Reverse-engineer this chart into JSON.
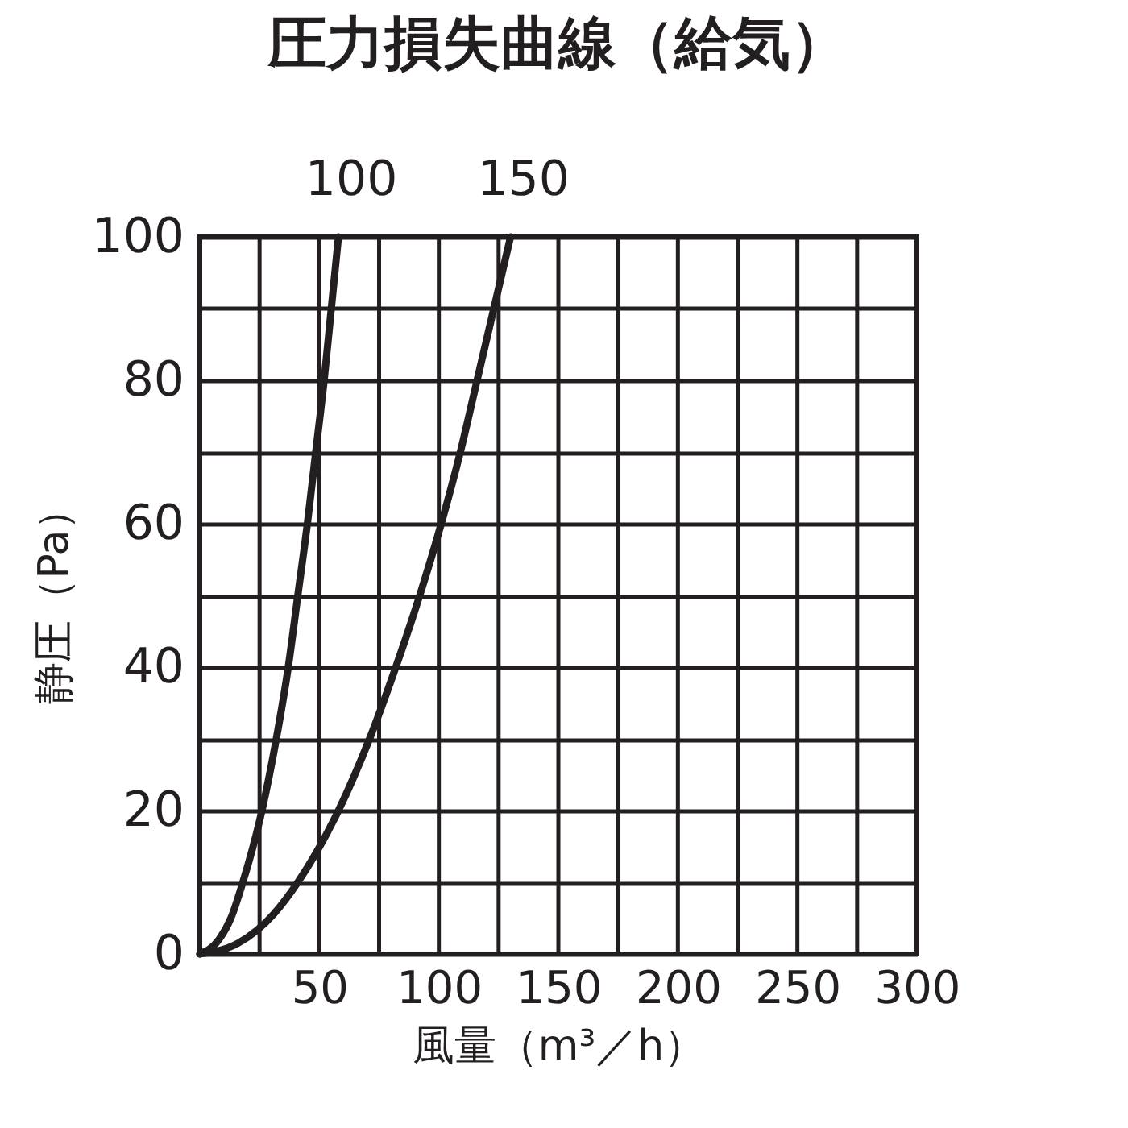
{
  "chart_data": {
    "type": "line",
    "title": "圧力損失曲線（給気）",
    "xlabel": "風量（m³／h）",
    "ylabel": "静圧（Pa）",
    "series": [
      {
        "name": "100",
        "color": "#231f20",
        "x": [
          0,
          8,
          13,
          18,
          26,
          32,
          37,
          41,
          45,
          48.5,
          52,
          55,
          58
        ],
        "values": [
          0,
          2,
          5,
          10,
          20,
          30,
          40,
          50,
          60,
          70,
          80,
          90,
          100
        ]
      },
      {
        "name": "150",
        "color": "#231f20",
        "x": [
          0,
          16,
          31,
          41,
          58,
          71,
          82,
          92,
          101,
          109,
          116,
          123,
          130
        ],
        "values": [
          0,
          1.5,
          5.6,
          10,
          20,
          30,
          40,
          50,
          60,
          70,
          80,
          90,
          100
        ]
      }
    ],
    "xlim": [
      0,
      300
    ],
    "ylim": [
      0,
      100
    ],
    "xticks": [
      {
        "value": 0,
        "label": null
      },
      {
        "value": 25,
        "label": null
      },
      50,
      {
        "value": 75,
        "label": null
      },
      100,
      {
        "value": 125,
        "label": null
      },
      150,
      {
        "value": 175,
        "label": null
      },
      200,
      {
        "value": 225,
        "label": null
      },
      250,
      {
        "value": 275,
        "label": null
      },
      300
    ],
    "yticks": [
      0,
      {
        "value": 10,
        "label": null
      },
      20,
      {
        "value": 30,
        "label": null
      },
      40,
      {
        "value": 50,
        "label": null
      },
      60,
      {
        "value": 70,
        "label": null
      },
      80,
      {
        "value": 90,
        "label": null
      },
      100
    ],
    "grid": true,
    "legend": false,
    "marker": "none",
    "line_style": "solid"
  }
}
